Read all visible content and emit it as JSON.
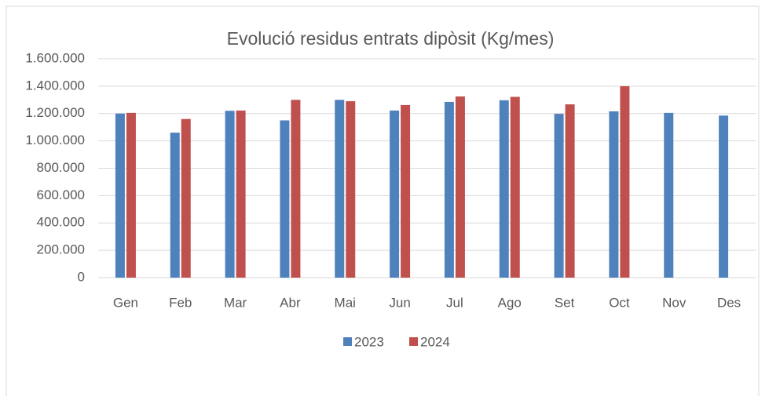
{
  "chart_data": {
    "type": "bar",
    "title": "Evolució residus entrats dipòsit (Kg/mes)",
    "categories": [
      "Gen",
      "Feb",
      "Mar",
      "Abr",
      "Mai",
      "Jun",
      "Jul",
      "Ago",
      "Set",
      "Oct",
      "Nov",
      "Des"
    ],
    "series": [
      {
        "name": "2023",
        "color": "#4f81bd",
        "values": [
          1200000,
          1060000,
          1220000,
          1150000,
          1300000,
          1222000,
          1285000,
          1297000,
          1198000,
          1216000,
          1205000,
          1185000
        ]
      },
      {
        "name": "2024",
        "color": "#c0504d",
        "values": [
          1205000,
          1160000,
          1222000,
          1300000,
          1290000,
          1262000,
          1325000,
          1322000,
          1267000,
          1400000,
          null,
          null
        ]
      }
    ],
    "ylim": [
      0,
      1600000
    ],
    "yticks": [
      0,
      {
        "value": 200000,
        "label": "200.000"
      },
      {
        "value": 400000,
        "label": "400.000"
      },
      {
        "value": 600000,
        "label": "600.000"
      },
      {
        "value": 800000,
        "label": "800.000"
      },
      {
        "value": 1000000,
        "label": "1.000.000"
      },
      {
        "value": 1200000,
        "label": "1.200.000"
      },
      {
        "value": 1400000,
        "label": "1.400.000"
      },
      {
        "value": 1600000,
        "label": "1.600.000"
      }
    ],
    "grid": true,
    "legend": "bottom"
  }
}
